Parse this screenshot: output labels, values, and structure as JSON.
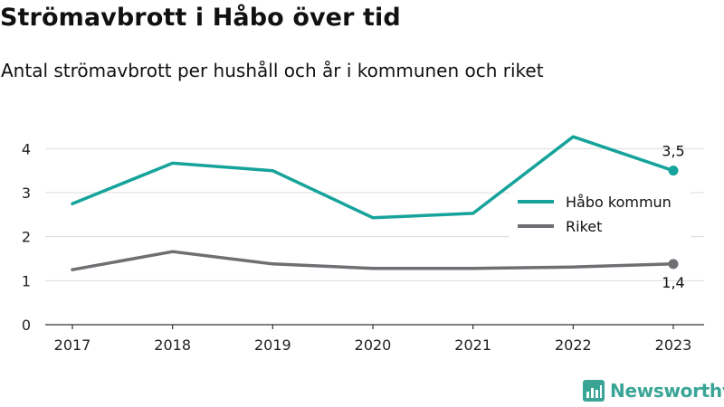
{
  "header": {
    "title": "Strömavbrott i Håbo över tid",
    "subtitle": "Antal strömavbrott per hushåll och år i kommunen och riket"
  },
  "chart_data": {
    "type": "line",
    "x": [
      "2017",
      "2018",
      "2019",
      "2020",
      "2021",
      "2022",
      "2023"
    ],
    "series": [
      {
        "name": "Håbo kommun",
        "color": "#16a39b",
        "values": [
          2.75,
          3.67,
          3.5,
          2.43,
          2.53,
          4.27,
          3.5
        ],
        "end_label": "3,5"
      },
      {
        "name": "Riket",
        "color": "#6f6e73",
        "values": [
          1.25,
          1.66,
          1.38,
          1.28,
          1.28,
          1.31,
          1.38
        ],
        "end_label": "1,4"
      }
    ],
    "ylim": [
      0,
      4.5
    ],
    "yticks": [
      "0",
      "1",
      "2",
      "3",
      "4"
    ],
    "grid": true,
    "legend_position": "right"
  },
  "brand": {
    "name": "Newsworthy",
    "logo_icon": "bar-chart-icon",
    "color": "#3aa596"
  }
}
